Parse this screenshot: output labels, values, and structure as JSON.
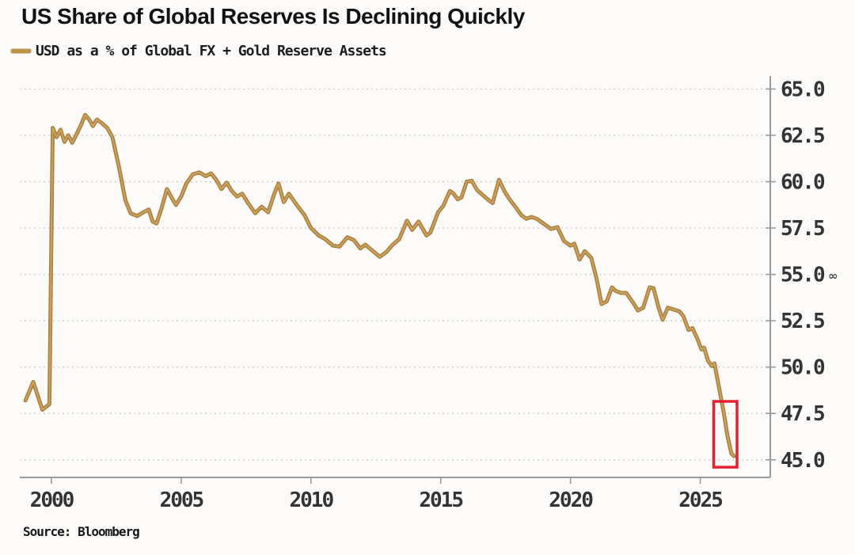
{
  "title": "US Share of Global Reserves Is Declining Quickly",
  "legend": {
    "label": "USD as a % of Global FX + Gold Reserve Assets",
    "swatch_color": "#bf9143"
  },
  "source": "Source: Bloomberg",
  "colors": {
    "background": "#fcfbf9",
    "line_outer": "#a97f42",
    "line_inner": "#d0a55c",
    "grid": "#c9c9c9",
    "axis": "#9a9a9a",
    "tick_label": "#333333",
    "highlight_box": "#e2232f",
    "title_text": "#121212"
  },
  "chart_data": {
    "type": "line",
    "title": "US Share of Global Reserves Is Declining Quickly",
    "xlabel": "",
    "ylabel": "",
    "legend_position": "top-left",
    "grid": "horizontal-dotted",
    "y_axis_side": "right",
    "xlim": [
      1998.78,
      2027.7
    ],
    "ylim": [
      44.05,
      65.7
    ],
    "x_ticks": [
      2000,
      2005,
      2010,
      2015,
      2020,
      2025
    ],
    "x_tick_labels": [
      "2000",
      "2005",
      "2010",
      "2015",
      "2020",
      "2025"
    ],
    "y_ticks": [
      65.0,
      62.5,
      60.0,
      57.5,
      55.0,
      52.5,
      50.0,
      47.5,
      45.0
    ],
    "y_tick_labels": [
      "65.0",
      "62.5",
      "60.0",
      "57.5",
      "55.0",
      "52.5",
      "50.0",
      "47.5",
      "45.0"
    ],
    "side_marker": {
      "text": "∞",
      "at_value": 55.0
    },
    "annotation_box": {
      "x0": 2025.52,
      "x1": 2026.42,
      "y0": 44.6,
      "y1": 48.15,
      "color": "#e2232f"
    },
    "series": [
      {
        "name": "USD as a % of Global FX + Gold Reserve Assets",
        "color": "#b5894a",
        "points": [
          [
            1999.0,
            48.2
          ],
          [
            1999.3,
            49.2
          ],
          [
            1999.65,
            47.7
          ],
          [
            1999.92,
            48.0
          ],
          [
            2000.05,
            62.9
          ],
          [
            2000.2,
            62.4
          ],
          [
            2000.35,
            62.8
          ],
          [
            2000.5,
            62.15
          ],
          [
            2000.65,
            62.5
          ],
          [
            2000.8,
            62.1
          ],
          [
            2000.95,
            62.5
          ],
          [
            2001.15,
            63.1
          ],
          [
            2001.3,
            63.6
          ],
          [
            2001.45,
            63.35
          ],
          [
            2001.6,
            63.0
          ],
          [
            2001.75,
            63.35
          ],
          [
            2001.95,
            63.15
          ],
          [
            2002.15,
            62.9
          ],
          [
            2002.35,
            62.4
          ],
          [
            2002.6,
            60.8
          ],
          [
            2002.85,
            59.0
          ],
          [
            2003.05,
            58.3
          ],
          [
            2003.3,
            58.15
          ],
          [
            2003.55,
            58.35
          ],
          [
            2003.75,
            58.5
          ],
          [
            2003.9,
            57.85
          ],
          [
            2004.05,
            57.75
          ],
          [
            2004.25,
            58.6
          ],
          [
            2004.45,
            59.6
          ],
          [
            2004.65,
            59.1
          ],
          [
            2004.8,
            58.75
          ],
          [
            2005.0,
            59.2
          ],
          [
            2005.2,
            59.9
          ],
          [
            2005.45,
            60.4
          ],
          [
            2005.7,
            60.5
          ],
          [
            2005.95,
            60.3
          ],
          [
            2006.15,
            60.45
          ],
          [
            2006.35,
            60.1
          ],
          [
            2006.55,
            59.6
          ],
          [
            2006.75,
            59.95
          ],
          [
            2006.95,
            59.5
          ],
          [
            2007.15,
            59.2
          ],
          [
            2007.35,
            59.35
          ],
          [
            2007.6,
            58.8
          ],
          [
            2007.85,
            58.3
          ],
          [
            2008.1,
            58.65
          ],
          [
            2008.35,
            58.35
          ],
          [
            2008.6,
            59.4
          ],
          [
            2008.75,
            59.9
          ],
          [
            2008.95,
            58.9
          ],
          [
            2009.15,
            59.35
          ],
          [
            2009.45,
            58.75
          ],
          [
            2009.75,
            58.2
          ],
          [
            2010.0,
            57.5
          ],
          [
            2010.3,
            57.1
          ],
          [
            2010.55,
            56.9
          ],
          [
            2010.85,
            56.55
          ],
          [
            2011.1,
            56.5
          ],
          [
            2011.4,
            57.0
          ],
          [
            2011.65,
            56.85
          ],
          [
            2011.9,
            56.4
          ],
          [
            2012.1,
            56.6
          ],
          [
            2012.35,
            56.3
          ],
          [
            2012.65,
            55.95
          ],
          [
            2012.9,
            56.2
          ],
          [
            2013.15,
            56.6
          ],
          [
            2013.4,
            56.9
          ],
          [
            2013.7,
            57.9
          ],
          [
            2013.9,
            57.4
          ],
          [
            2014.15,
            57.85
          ],
          [
            2014.45,
            57.1
          ],
          [
            2014.6,
            57.25
          ],
          [
            2014.9,
            58.35
          ],
          [
            2015.1,
            58.7
          ],
          [
            2015.35,
            59.5
          ],
          [
            2015.5,
            59.35
          ],
          [
            2015.65,
            59.05
          ],
          [
            2015.8,
            59.15
          ],
          [
            2016.0,
            60.0
          ],
          [
            2016.2,
            60.05
          ],
          [
            2016.4,
            59.55
          ],
          [
            2016.6,
            59.3
          ],
          [
            2016.85,
            59.0
          ],
          [
            2017.0,
            58.85
          ],
          [
            2017.25,
            60.1
          ],
          [
            2017.45,
            59.5
          ],
          [
            2017.65,
            59.05
          ],
          [
            2017.9,
            58.6
          ],
          [
            2018.1,
            58.2
          ],
          [
            2018.3,
            58.0
          ],
          [
            2018.5,
            58.1
          ],
          [
            2018.7,
            58.0
          ],
          [
            2018.95,
            57.75
          ],
          [
            2019.25,
            57.45
          ],
          [
            2019.5,
            57.55
          ],
          [
            2019.75,
            56.8
          ],
          [
            2020.0,
            56.55
          ],
          [
            2020.15,
            56.65
          ],
          [
            2020.35,
            55.8
          ],
          [
            2020.55,
            56.25
          ],
          [
            2020.8,
            55.9
          ],
          [
            2021.0,
            54.8
          ],
          [
            2021.2,
            53.4
          ],
          [
            2021.4,
            53.55
          ],
          [
            2021.6,
            54.3
          ],
          [
            2021.75,
            54.1
          ],
          [
            2021.95,
            54.0
          ],
          [
            2022.15,
            54.0
          ],
          [
            2022.4,
            53.5
          ],
          [
            2022.6,
            53.05
          ],
          [
            2022.8,
            53.2
          ],
          [
            2023.05,
            54.3
          ],
          [
            2023.2,
            54.25
          ],
          [
            2023.4,
            53.2
          ],
          [
            2023.55,
            52.55
          ],
          [
            2023.75,
            53.2
          ],
          [
            2024.0,
            53.1
          ],
          [
            2024.2,
            53.0
          ],
          [
            2024.35,
            52.75
          ],
          [
            2024.55,
            52.0
          ],
          [
            2024.7,
            52.1
          ],
          [
            2024.9,
            51.5
          ],
          [
            2025.05,
            50.95
          ],
          [
            2025.15,
            51.05
          ],
          [
            2025.3,
            50.35
          ],
          [
            2025.45,
            50.05
          ],
          [
            2025.55,
            50.2
          ],
          [
            2025.75,
            48.7
          ],
          [
            2025.9,
            47.6
          ],
          [
            2026.05,
            46.3
          ],
          [
            2026.2,
            45.35
          ],
          [
            2026.3,
            45.2
          ]
        ]
      }
    ]
  }
}
